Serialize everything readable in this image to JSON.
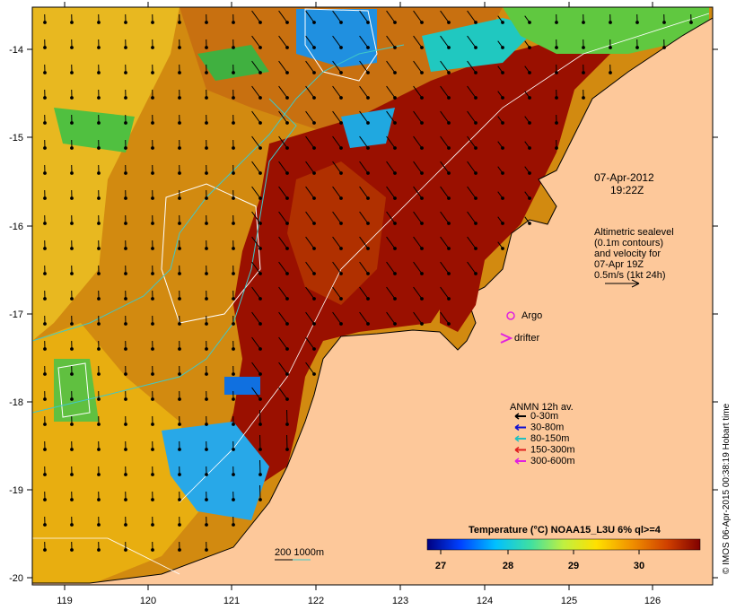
{
  "map": {
    "date": "07-Apr-2012",
    "time": "19:22Z",
    "altimetry_note": [
      "Altimetric sealevel",
      "(0.1m contours)",
      "and velocity for",
      "07-Apr 19Z",
      "0.5m/s (1kt 24h)"
    ],
    "argo_label": "Argo",
    "drifter_label": "drifter",
    "legend_title": "ANMN 12h av.",
    "legend_items": [
      {
        "label": "0-30m",
        "color": "#000000"
      },
      {
        "label": "30-80m",
        "color": "#1010d0"
      },
      {
        "label": "80-150m",
        "color": "#20c0c0"
      },
      {
        "label": "150-300m",
        "color": "#e02020"
      },
      {
        "label": "300-600m",
        "color": "#e020e0"
      }
    ],
    "colorbar_title": "Temperature (°C) NOAA15_L3U 6% ql>=4",
    "colorbar_ticks": [
      "27",
      "28",
      "29",
      "30"
    ],
    "bathymetry_label": "200  1000m",
    "credit": "© IMOS 06-Apr-2015 00:38:19 Hobart time",
    "lon_ticks": [
      "119",
      "120",
      "121",
      "122",
      "123",
      "124",
      "125",
      "126"
    ],
    "lat_ticks": [
      "-14",
      "-15",
      "-16",
      "-17",
      "-18",
      "-19",
      "-20"
    ],
    "colors": {
      "land": "#fdc89a",
      "sst_hot": "#8c0000",
      "sst_warm": "#c86e00",
      "sst_mid": "#e8a400",
      "sst_yellow": "#f0e030",
      "sst_green": "#40d040",
      "sst_cyan": "#20c0e0",
      "sst_blue": "#1060e0"
    }
  }
}
